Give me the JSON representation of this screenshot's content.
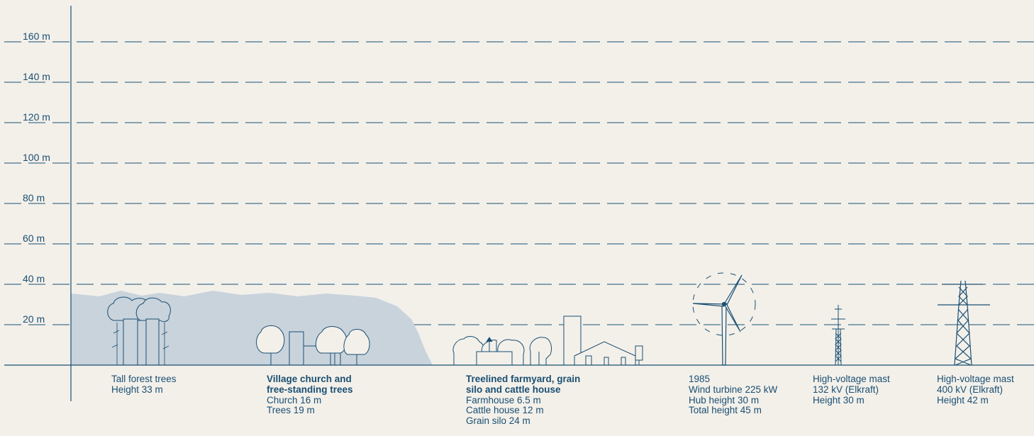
{
  "y_axis": {
    "unit": "m",
    "ticks": [
      "160 m",
      "140 m",
      "120 m",
      "100 m",
      "80 m",
      "60 m",
      "40 m",
      "20 m"
    ]
  },
  "objects": [
    {
      "id": "forest",
      "lines": [
        "Tall forest trees",
        "Height 33 m"
      ],
      "bold_lines": 0
    },
    {
      "id": "church",
      "lines": [
        "Village church and",
        "free-standing trees",
        "Church 16 m",
        "Trees 19 m"
      ],
      "bold_lines": 2
    },
    {
      "id": "farm",
      "lines": [
        "Treelined farmyard, grain",
        "silo and cattle house",
        "Farmhouse 6.5 m",
        "Cattle house 12 m",
        "Grain silo 24 m"
      ],
      "bold_lines": 2
    },
    {
      "id": "turbine",
      "lines": [
        "1985",
        "Wind turbine 225 kW",
        "Hub height 30 m",
        "Total height 45 m"
      ],
      "bold_lines": 0
    },
    {
      "id": "mast132",
      "lines": [
        "High-voltage mast",
        "132 kV (Elkraft)",
        "Height 30 m"
      ],
      "bold_lines": 0
    },
    {
      "id": "mast400",
      "lines": [
        "High-voltage mast",
        "400 kV (Elkraft)",
        "Height 42 m"
      ],
      "bold_lines": 0
    }
  ],
  "heights_m": {
    "forest_trees": 33,
    "church": 16,
    "church_trees": 19,
    "farmhouse": 6.5,
    "cattle_house": 12,
    "grain_silo": 24,
    "turbine_hub": 30,
    "turbine_total": 45,
    "mast_132kv": 30,
    "mast_400kv": 42
  },
  "colors": {
    "background": "#f3f0ea",
    "line": "#1a4f72",
    "vegetation": "#c9d3dc"
  }
}
